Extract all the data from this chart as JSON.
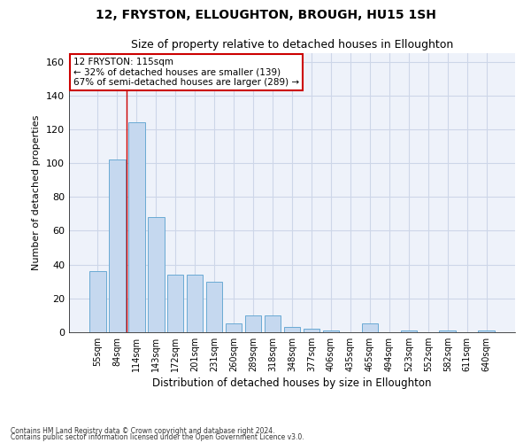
{
  "title": "12, FRYSTON, ELLOUGHTON, BROUGH, HU15 1SH",
  "subtitle": "Size of property relative to detached houses in Elloughton",
  "xlabel": "Distribution of detached houses by size in Elloughton",
  "ylabel": "Number of detached properties",
  "categories": [
    "55sqm",
    "84sqm",
    "114sqm",
    "143sqm",
    "172sqm",
    "201sqm",
    "231sqm",
    "260sqm",
    "289sqm",
    "318sqm",
    "348sqm",
    "377sqm",
    "406sqm",
    "435sqm",
    "465sqm",
    "494sqm",
    "523sqm",
    "552sqm",
    "582sqm",
    "611sqm",
    "640sqm"
  ],
  "values": [
    36,
    102,
    124,
    68,
    34,
    34,
    30,
    5,
    10,
    10,
    3,
    2,
    1,
    0,
    5,
    0,
    1,
    0,
    1,
    0,
    1
  ],
  "bar_color": "#c5d8ef",
  "bar_edge_color": "#6aaad4",
  "vertical_line_x": 1.5,
  "annotation_text": "12 FRYSTON: 115sqm\n← 32% of detached houses are smaller (139)\n67% of semi-detached houses are larger (289) →",
  "annotation_box_color": "#ffffff",
  "annotation_box_edge_color": "#cc0000",
  "ylim": [
    0,
    165
  ],
  "yticks": [
    0,
    20,
    40,
    60,
    80,
    100,
    120,
    140,
    160
  ],
  "grid_color": "#cdd6e8",
  "bg_color": "#eef2fa",
  "footer_line1": "Contains HM Land Registry data © Crown copyright and database right 2024.",
  "footer_line2": "Contains public sector information licensed under the Open Government Licence v3.0."
}
